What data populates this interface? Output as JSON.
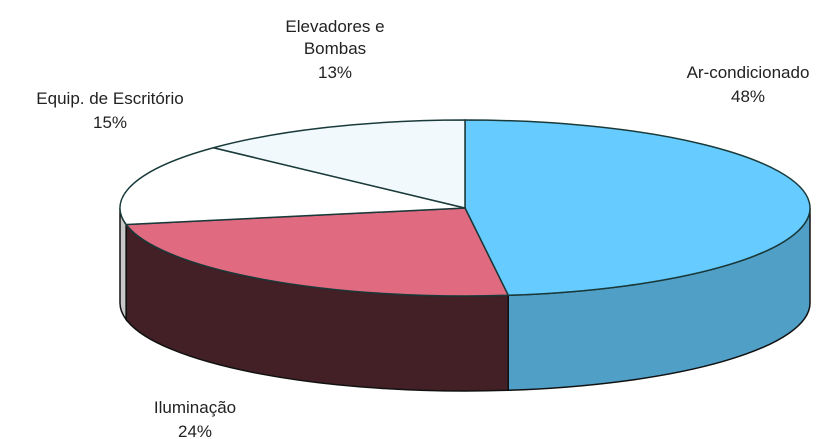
{
  "chart_data": {
    "type": "pie3d",
    "categories": [
      "Ar-condicionado",
      "Iluminação",
      "Equip. de Escritório",
      "Elevadores e Bombas"
    ],
    "values": [
      48,
      24,
      15,
      13
    ],
    "value_labels": [
      "48%",
      "24%",
      "15%",
      "13%"
    ],
    "colors": [
      "#66ccff",
      "#e06a80",
      "#ffffff",
      "#f2f9fd"
    ]
  }
}
